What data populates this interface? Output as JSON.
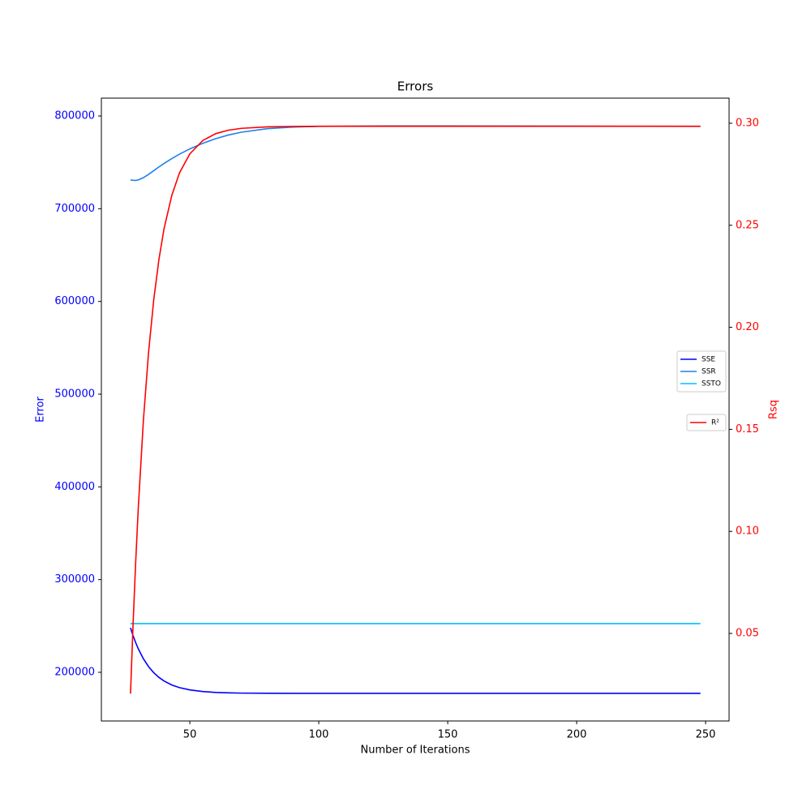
{
  "chart_data": {
    "type": "line",
    "title": "Errors",
    "xlabel": "Number of Iterations",
    "ylabel": "Error",
    "y2label": "Rsq",
    "ylabel_color": "#0000ff",
    "y2label_color": "#ff0000",
    "x": [
      27,
      28,
      29,
      30,
      32,
      34,
      36,
      38,
      40,
      43,
      46,
      50,
      55,
      60,
      65,
      70,
      80,
      90,
      100,
      125,
      150,
      175,
      200,
      225,
      248
    ],
    "series": [
      {
        "name": "SSE",
        "color": "#0000ff",
        "values": [
          248000,
          239490,
          232020,
          225430,
          214550,
          206130,
          199610,
          194570,
          190660,
          186370,
          183460,
          181010,
          179250,
          178330,
          177840,
          177590,
          177380,
          177320,
          177300,
          177300,
          177300,
          177300,
          177300,
          177300,
          177300
        ]
      },
      {
        "name": "SSR",
        "color": "#1f7fef",
        "values": [
          731000,
          730600,
          730500,
          731000,
          733500,
          737000,
          741000,
          745000,
          748800,
          754000,
          758800,
          764500,
          770500,
          775500,
          779500,
          782500,
          786300,
          788000,
          788800,
          789200,
          789200,
          789100,
          789000,
          788900,
          788800
        ]
      },
      {
        "name": "SSTO",
        "color": "#00bfff",
        "values": [
          252500,
          252500,
          252500,
          252500,
          252500,
          252500,
          252500,
          252500,
          252500,
          252500,
          252500,
          252500,
          252500,
          252500,
          252500,
          252500,
          252500,
          252500,
          252500,
          252500,
          252500,
          252500,
          252500,
          252500,
          252500
        ]
      },
      {
        "name": "R²",
        "color": "#ff0000",
        "axis": "y2",
        "values": [
          0.0205,
          0.0548,
          0.0848,
          0.1112,
          0.1545,
          0.1878,
          0.2134,
          0.2331,
          0.2483,
          0.2646,
          0.2757,
          0.285,
          0.2915,
          0.2949,
          0.2966,
          0.2975,
          0.2982,
          0.2984,
          0.2985,
          0.2985,
          0.2985,
          0.2985,
          0.2985,
          0.2985,
          0.2985
        ]
      }
    ],
    "xlim": [
      15.7,
      259.1
    ],
    "xticks": [
      50,
      100,
      150,
      200,
      250
    ],
    "ylim": [
      147520,
      819240
    ],
    "yticks": [
      200000,
      300000,
      400000,
      500000,
      600000,
      700000,
      800000
    ],
    "y2lim": [
      0.0071,
      0.3123
    ],
    "y2ticks": [
      0.05,
      {
        "value": 0.1,
        "label": "0.10"
      },
      0.15,
      {
        "value": 0.2,
        "label": "0.20"
      },
      0.25,
      {
        "value": 0.3,
        "label": "0.30"
      }
    ],
    "grid": false
  }
}
